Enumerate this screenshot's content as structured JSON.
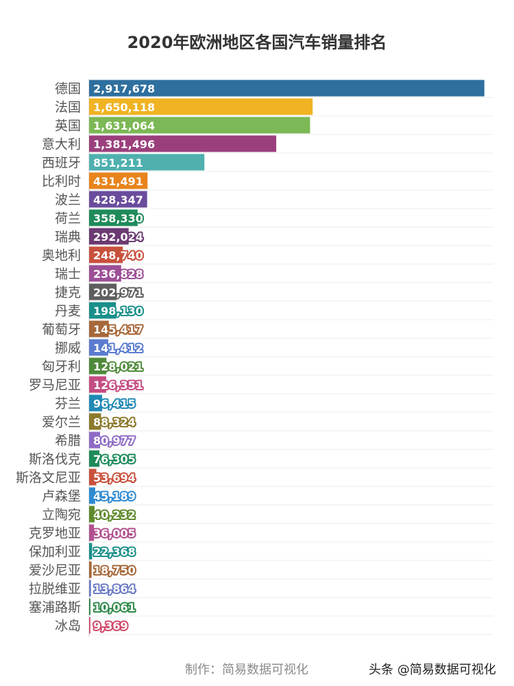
{
  "chart_data": {
    "type": "bar",
    "orientation": "horizontal",
    "title": "2020年欧洲地区各国汽车销量排名",
    "xlabel": "",
    "ylabel": "",
    "xlim": [
      0,
      3000000
    ],
    "grid": true,
    "legend": "none",
    "categories": [
      "德国",
      "法国",
      "英国",
      "意大利",
      "西班牙",
      "比利时",
      "波兰",
      "荷兰",
      "瑞典",
      "奥地利",
      "瑞士",
      "捷克",
      "丹麦",
      "葡萄牙",
      "挪威",
      "匈牙利",
      "罗马尼亚",
      "芬兰",
      "爱尔兰",
      "希腊",
      "斯洛伐克",
      "斯洛文尼亚",
      "卢森堡",
      "立陶宛",
      "克罗地亚",
      "保加利亚",
      "爱沙尼亚",
      "拉脱维亚",
      "塞浦路斯",
      "冰岛"
    ],
    "values": [
      2917678,
      1650118,
      1631064,
      1381496,
      851211,
      431491,
      428347,
      358330,
      292024,
      248740,
      236828,
      202971,
      198130,
      145417,
      141412,
      128021,
      126351,
      96415,
      88324,
      80977,
      76305,
      53694,
      45189,
      40232,
      36005,
      22368,
      18750,
      13864,
      10061,
      9369
    ],
    "value_labels": [
      "2,917,678",
      "1,650,118",
      "1,631,064",
      "1,381,496",
      "851,211",
      "431,491",
      "428,347",
      "358,330",
      "292,024",
      "248,740",
      "236,828",
      "202,971",
      "198,130",
      "145,417",
      "141,412",
      "128,021",
      "126,351",
      "96,415",
      "88,324",
      "80,977",
      "76,305",
      "53,694",
      "45,189",
      "40,232",
      "36,005",
      "22,368",
      "18,750",
      "13,864",
      "10,061",
      "9,369"
    ],
    "colors": [
      "#2e6f9e",
      "#f0b323",
      "#7cb855",
      "#9b3f7c",
      "#4fb0ae",
      "#e8841c",
      "#6a4c9c",
      "#1f8a5a",
      "#6b3a72",
      "#c8513c",
      "#9c4f96",
      "#5e5e5e",
      "#1a8f8a",
      "#a6683a",
      "#5b7ccf",
      "#4e8a3a",
      "#c44d82",
      "#2189b5",
      "#8c7a2c",
      "#8e6bc4",
      "#1f8a5a",
      "#c8513c",
      "#2e8ad1",
      "#5e8a2c",
      "#b0508f",
      "#1a8f8a",
      "#a6683a",
      "#6b7ac4",
      "#2f8a4a",
      "#d04a68"
    ]
  },
  "footer": {
    "credit": "制作：简易数据可视化",
    "watermark": "头条 @简易数据可视化"
  }
}
